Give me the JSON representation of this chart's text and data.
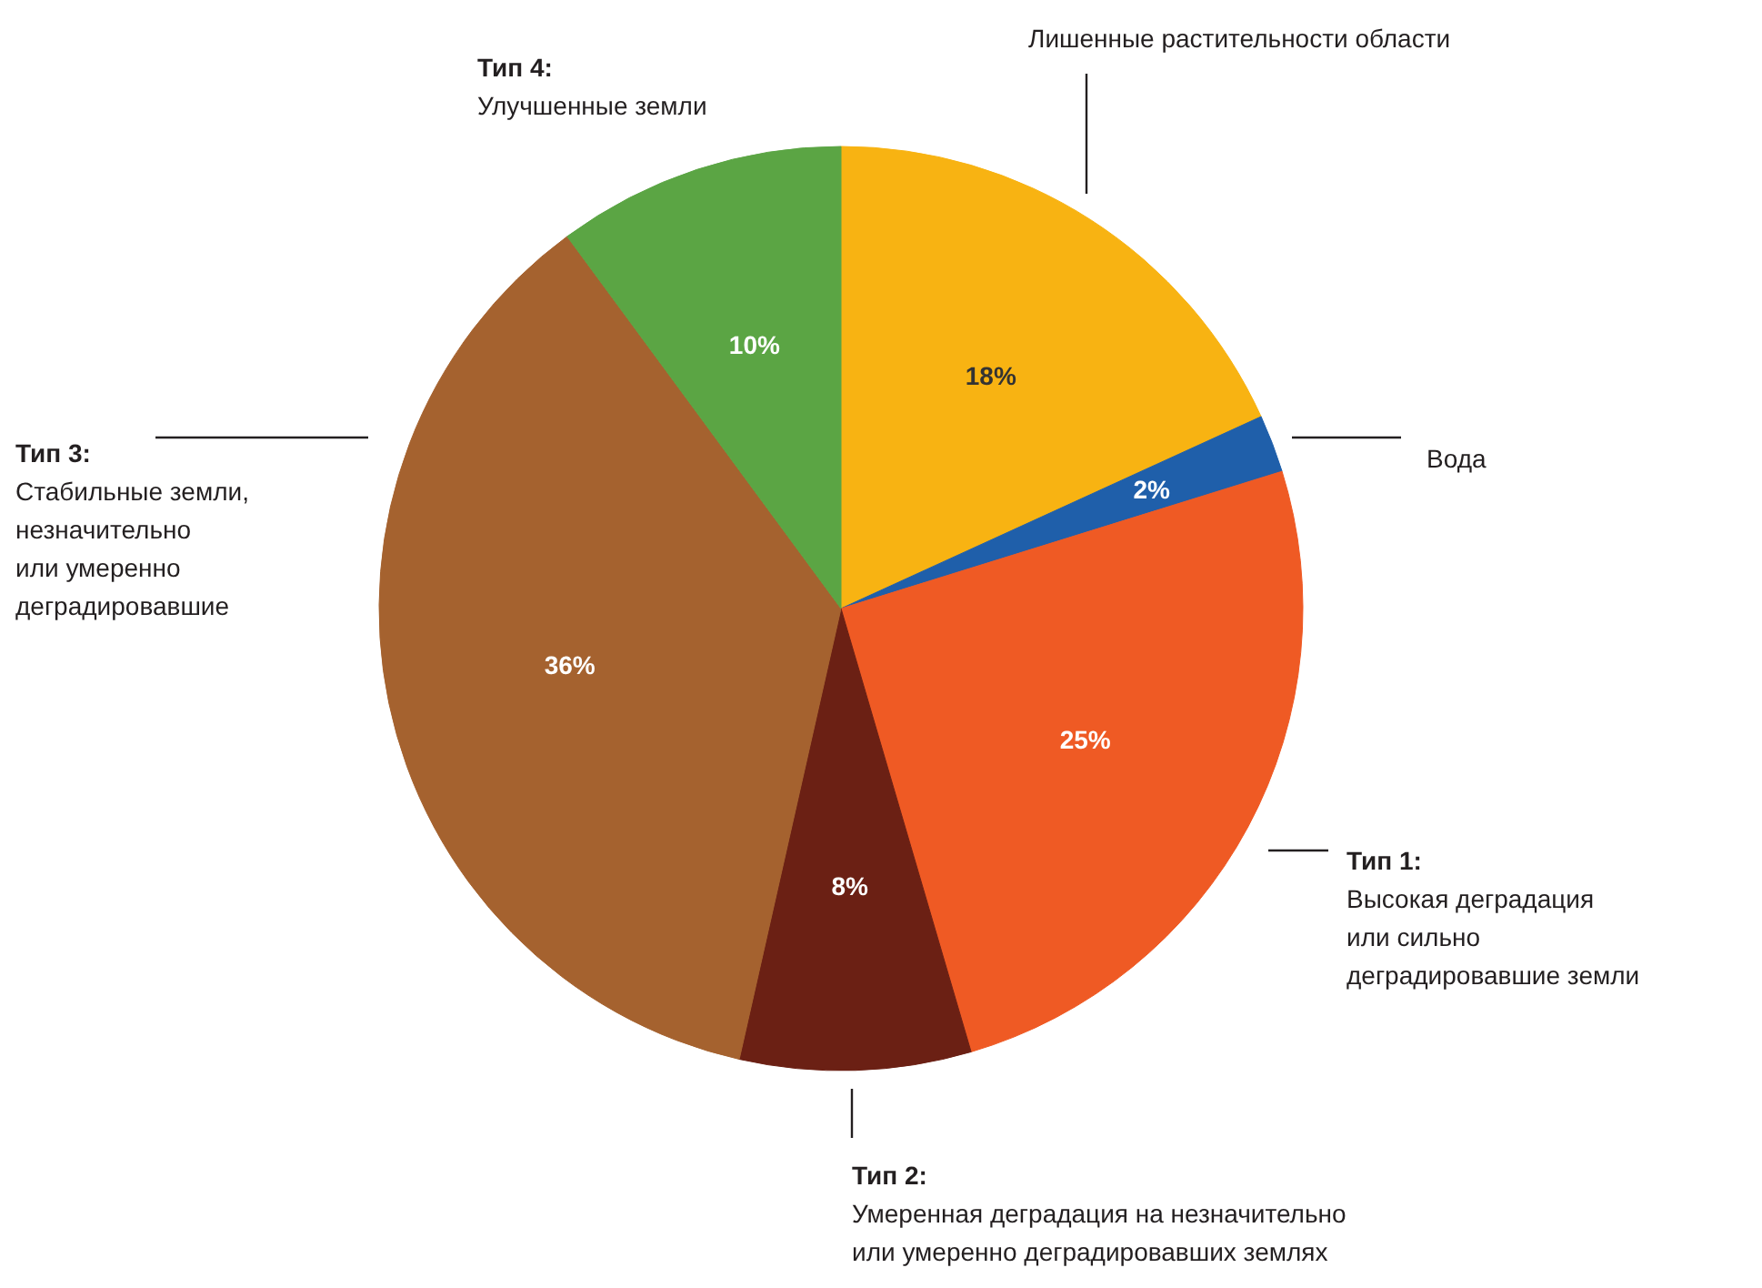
{
  "chart_data": {
    "type": "pie",
    "categories": [
      "Лишенные растительности области",
      "Вода",
      "Тип 1:\nВысокая деградация\nили сильно\nдеградировавшие земли",
      "Тип 2:\nУмеренная деградация на незначительно\nили умеренно деградировавших землях",
      "Тип 3:\nСтабильные земли,\nнезначительно\nили умеренно\nдеградировавшие",
      "Тип 4:\nУлучшенные земли"
    ],
    "values": [
      18,
      2,
      25,
      8,
      36,
      10
    ],
    "value_labels": [
      "18%",
      "2%",
      "25%",
      "8%",
      "36%",
      "10%"
    ],
    "colors": [
      "#f8b312",
      "#1f5faa",
      "#ef5a24",
      "#6b2014",
      "#a5622f",
      "#5ba544"
    ]
  }
}
